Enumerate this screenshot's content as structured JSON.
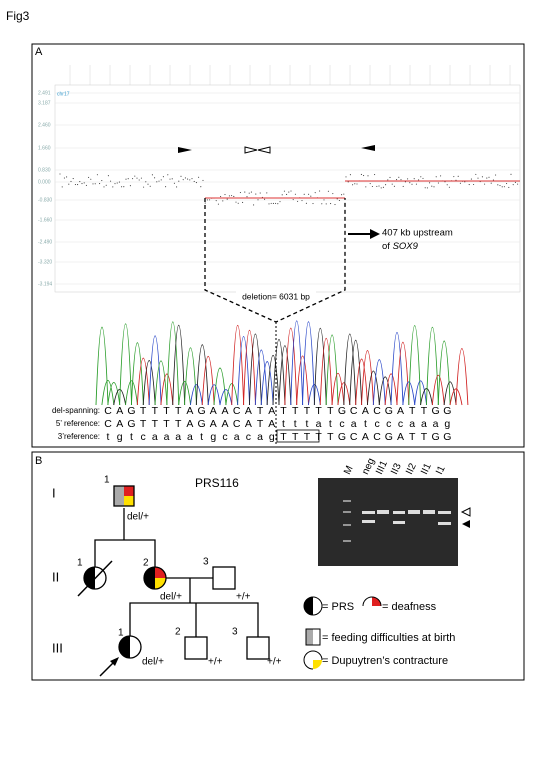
{
  "figure_label": "Fig3",
  "panel_a": {
    "label": "A",
    "chromosome": "chr17",
    "y_axis_labels": [
      "2.491",
      "3.187",
      "2.460",
      "1.660",
      "0.830",
      "0.000",
      "-0.830",
      "-1.660",
      "-2.490",
      "-3.320",
      "-3.194"
    ],
    "annotation": {
      "line1": "407 kb upstream",
      "line2_prefix": "of ",
      "gene": "SOX9"
    },
    "deletion_label": "deletion= 6031 bp",
    "sequence_rows": [
      {
        "label": "del-spanning:",
        "bases": [
          "C",
          "A",
          "G",
          "T",
          "T",
          "T",
          "T",
          "A",
          "G",
          "A",
          "A",
          "C",
          "A",
          "T",
          "A",
          "T",
          "T",
          "T",
          "T",
          "T",
          "G",
          "C",
          "A",
          "C",
          "G",
          "A",
          "T",
          "T",
          "G",
          "G"
        ]
      },
      {
        "label": "5’ reference:",
        "bases": [
          "C",
          "A",
          "G",
          "T",
          "T",
          "T",
          "T",
          "A",
          "G",
          "A",
          "A",
          "C",
          "A",
          "T",
          "A",
          "t",
          "t",
          "t",
          "a",
          "t",
          "c",
          "a",
          "t",
          "c",
          "c",
          "c",
          "a",
          "a",
          "a",
          "g"
        ]
      },
      {
        "label": "3’reference:",
        "bases": [
          "t",
          "g",
          "t",
          "c",
          "a",
          "a",
          "a",
          "a",
          "t",
          "g",
          "c",
          "a",
          "c",
          "a",
          "g",
          "T",
          "T",
          "T",
          "T",
          "T",
          "G",
          "C",
          "A",
          "C",
          "G",
          "A",
          "T",
          "T",
          "G",
          "G"
        ]
      }
    ]
  },
  "panel_b": {
    "label": "B",
    "family": "PRS116",
    "generations": [
      "I",
      "II",
      "III"
    ],
    "individuals": [
      {
        "number": "1",
        "genotype": "del/+"
      },
      {
        "number": "1"
      },
      {
        "number": "2",
        "genotype": "del/+"
      },
      {
        "number": "3",
        "genotype": "+/+"
      },
      {
        "number": "1",
        "genotype": "del/+"
      },
      {
        "number": "2",
        "genotype": "+/+"
      },
      {
        "number": "3",
        "genotype": "+/+"
      }
    ],
    "gel_lanes": [
      "M",
      "neg",
      "III1",
      "II3",
      "II2",
      "II1",
      "I1"
    ],
    "legend": [
      "= PRS",
      "= deafness",
      "= feeding difficulties at birth",
      "= Dupuytren’s contracture"
    ]
  }
}
